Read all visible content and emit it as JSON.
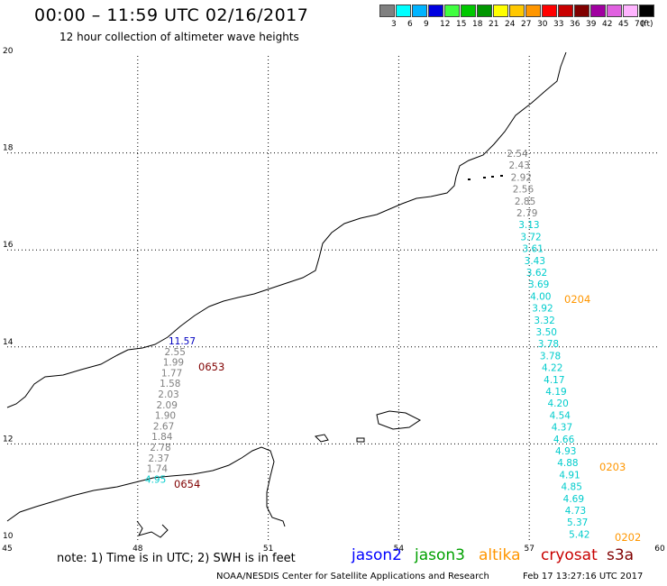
{
  "header": {
    "title": "00:00 – 11:59 UTC 02/16/2017",
    "subtitle": "12 hour collection of altimeter wave heights"
  },
  "color_scale": {
    "unit": "(ft)",
    "items": [
      {
        "label": "3",
        "color": "#808080"
      },
      {
        "label": "6",
        "color": "#00ffff"
      },
      {
        "label": "9",
        "color": "#00b4ff"
      },
      {
        "label": "12",
        "color": "#0000e0"
      },
      {
        "label": "15",
        "color": "#40ff40"
      },
      {
        "label": "18",
        "color": "#00c800"
      },
      {
        "label": "21",
        "color": "#009600"
      },
      {
        "label": "24",
        "color": "#ffff00"
      },
      {
        "label": "27",
        "color": "#ffc800"
      },
      {
        "label": "30",
        "color": "#ff9600"
      },
      {
        "label": "33",
        "color": "#ff0000"
      },
      {
        "label": "36",
        "color": "#c80000"
      },
      {
        "label": "39",
        "color": "#800000"
      },
      {
        "label": "42",
        "color": "#a000a0"
      },
      {
        "label": "45",
        "color": "#e060e0"
      },
      {
        "label": "70",
        "color": "#ffb4ff"
      },
      {
        "label": "",
        "color": "#000000"
      }
    ]
  },
  "axes": {
    "lat_ticks": [
      "20",
      "18",
      "16",
      "14",
      "12",
      "10"
    ],
    "lon_ticks": [
      "45",
      "48",
      "51",
      "54",
      "57",
      "60"
    ]
  },
  "tracks": [
    {
      "name": "track-0653-0654",
      "points": [
        {
          "text": "11.57",
          "color": "#0000c0"
        },
        {
          "text": "2.55",
          "color": "#808080"
        },
        {
          "text": "1.99",
          "color": "#808080"
        },
        {
          "text": "1.77",
          "color": "#808080"
        },
        {
          "text": "1.58",
          "color": "#808080"
        },
        {
          "text": "2.03",
          "color": "#808080"
        },
        {
          "text": "2.09",
          "color": "#808080"
        },
        {
          "text": "1.90",
          "color": "#808080"
        },
        {
          "text": "2.67",
          "color": "#808080"
        },
        {
          "text": "1.84",
          "color": "#808080"
        },
        {
          "text": "2.78",
          "color": "#808080"
        },
        {
          "text": "2.37",
          "color": "#808080"
        },
        {
          "text": "1.74",
          "color": "#808080"
        },
        {
          "text": "4.95",
          "color": "#00cccc"
        }
      ]
    },
    {
      "name": "track-0202-0204",
      "points": [
        {
          "text": "2.54",
          "color": "#808080"
        },
        {
          "text": "2.43",
          "color": "#808080"
        },
        {
          "text": "2.92",
          "color": "#808080"
        },
        {
          "text": "2.56",
          "color": "#808080"
        },
        {
          "text": "2.85",
          "color": "#808080"
        },
        {
          "text": "2.79",
          "color": "#808080"
        },
        {
          "text": "3.13",
          "color": "#00cccc"
        },
        {
          "text": "3.72",
          "color": "#00cccc"
        },
        {
          "text": "3.61",
          "color": "#00cccc"
        },
        {
          "text": "3.43",
          "color": "#00cccc"
        },
        {
          "text": "3.62",
          "color": "#00cccc"
        },
        {
          "text": "3.69",
          "color": "#00cccc"
        },
        {
          "text": "4.00",
          "color": "#00cccc"
        },
        {
          "text": "3.92",
          "color": "#00cccc"
        },
        {
          "text": "3.32",
          "color": "#00cccc"
        },
        {
          "text": "3.50",
          "color": "#00cccc"
        },
        {
          "text": "3.78",
          "color": "#00cccc"
        },
        {
          "text": "3.78",
          "color": "#00cccc"
        },
        {
          "text": "4.22",
          "color": "#00cccc"
        },
        {
          "text": "4.17",
          "color": "#00cccc"
        },
        {
          "text": "4.19",
          "color": "#00cccc"
        },
        {
          "text": "4.20",
          "color": "#00cccc"
        },
        {
          "text": "4.54",
          "color": "#00cccc"
        },
        {
          "text": "4.37",
          "color": "#00cccc"
        },
        {
          "text": "4.66",
          "color": "#00cccc"
        },
        {
          "text": "4.93",
          "color": "#00cccc"
        },
        {
          "text": "4.88",
          "color": "#00cccc"
        },
        {
          "text": "4.91",
          "color": "#00cccc"
        },
        {
          "text": "4.85",
          "color": "#00cccc"
        },
        {
          "text": "4.69",
          "color": "#00cccc"
        },
        {
          "text": "4.73",
          "color": "#00cccc"
        },
        {
          "text": "5.37",
          "color": "#00cccc"
        },
        {
          "text": "5.42",
          "color": "#00cccc"
        }
      ]
    }
  ],
  "time_labels": [
    {
      "text": "0653",
      "color": "#800000"
    },
    {
      "text": "0654",
      "color": "#800000"
    },
    {
      "text": "0204",
      "color": "#ff9600"
    },
    {
      "text": "0203",
      "color": "#ff9600"
    },
    {
      "text": "0202",
      "color": "#ff9600"
    }
  ],
  "footer": {
    "note": "note: 1) Time is in UTC; 2) SWH is in feet",
    "satellites": [
      {
        "label": "jason2",
        "color": "#0000ff"
      },
      {
        "label": "jason3",
        "color": "#00a000"
      },
      {
        "label": "altika",
        "color": "#ff9600"
      },
      {
        "label": "cryosat",
        "color": "#c80000"
      },
      {
        "label": "s3a",
        "color": "#800000"
      }
    ],
    "credit": "NOAA/NESDIS Center for Satellite Applications and Research",
    "timestamp": "Feb 17 13:27:16 UTC 2017"
  }
}
